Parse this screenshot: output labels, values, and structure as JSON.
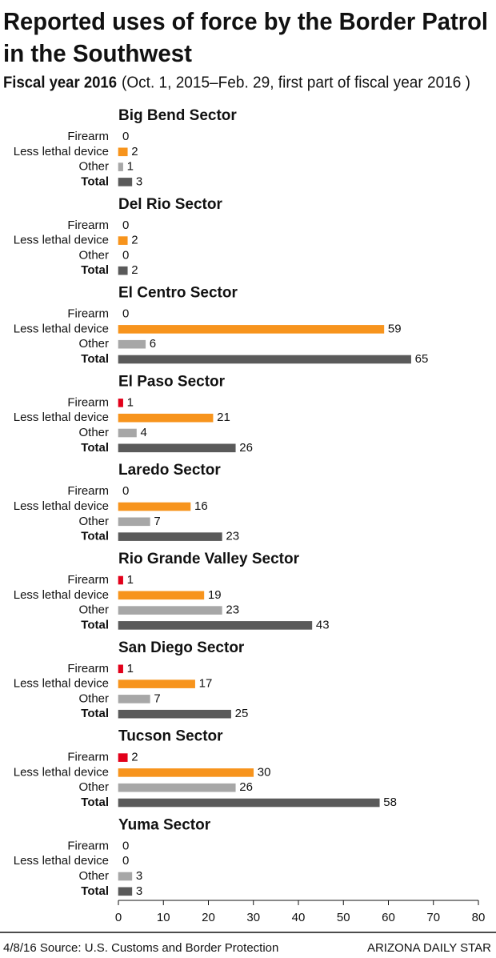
{
  "chart_data": {
    "type": "bar",
    "orientation": "horizontal",
    "title": "Reported uses of force by the Border Patrol in the Southwest",
    "subtitle_bold": "Fiscal year 2016",
    "subtitle": "(Oct. 1, 2015–Feb. 29, first part of fiscal year 2016 )",
    "categories": [
      "Firearm",
      "Less lethal device",
      "Other",
      "Total"
    ],
    "colors": [
      "#e2001a",
      "#f7941d",
      "#a7a7a7",
      "#5a5a5a"
    ],
    "panels": [
      {
        "title": "Big Bend Sector",
        "values": [
          0,
          2,
          1,
          3
        ]
      },
      {
        "title": "Del Rio Sector",
        "values": [
          0,
          2,
          0,
          2
        ]
      },
      {
        "title": "El Centro Sector",
        "values": [
          0,
          59,
          6,
          65
        ]
      },
      {
        "title": "El Paso Sector",
        "values": [
          1,
          21,
          4,
          26
        ]
      },
      {
        "title": "Laredo Sector",
        "values": [
          0,
          16,
          7,
          23
        ]
      },
      {
        "title": "Rio Grande Valley Sector",
        "values": [
          1,
          19,
          23,
          43
        ]
      },
      {
        "title": "San Diego Sector",
        "values": [
          1,
          17,
          7,
          25
        ]
      },
      {
        "title": "Tucson Sector",
        "values": [
          2,
          30,
          26,
          58
        ]
      },
      {
        "title": "Yuma Sector",
        "values": [
          0,
          0,
          3,
          3
        ]
      }
    ],
    "xlim": [
      0,
      80
    ],
    "xticks": [
      0,
      10,
      20,
      30,
      40,
      50,
      60,
      70,
      80
    ],
    "footer_left": "4/8/16  Source: U.S. Customs and Border Protection",
    "footer_right": "ARIZONA DAILY STAR"
  }
}
